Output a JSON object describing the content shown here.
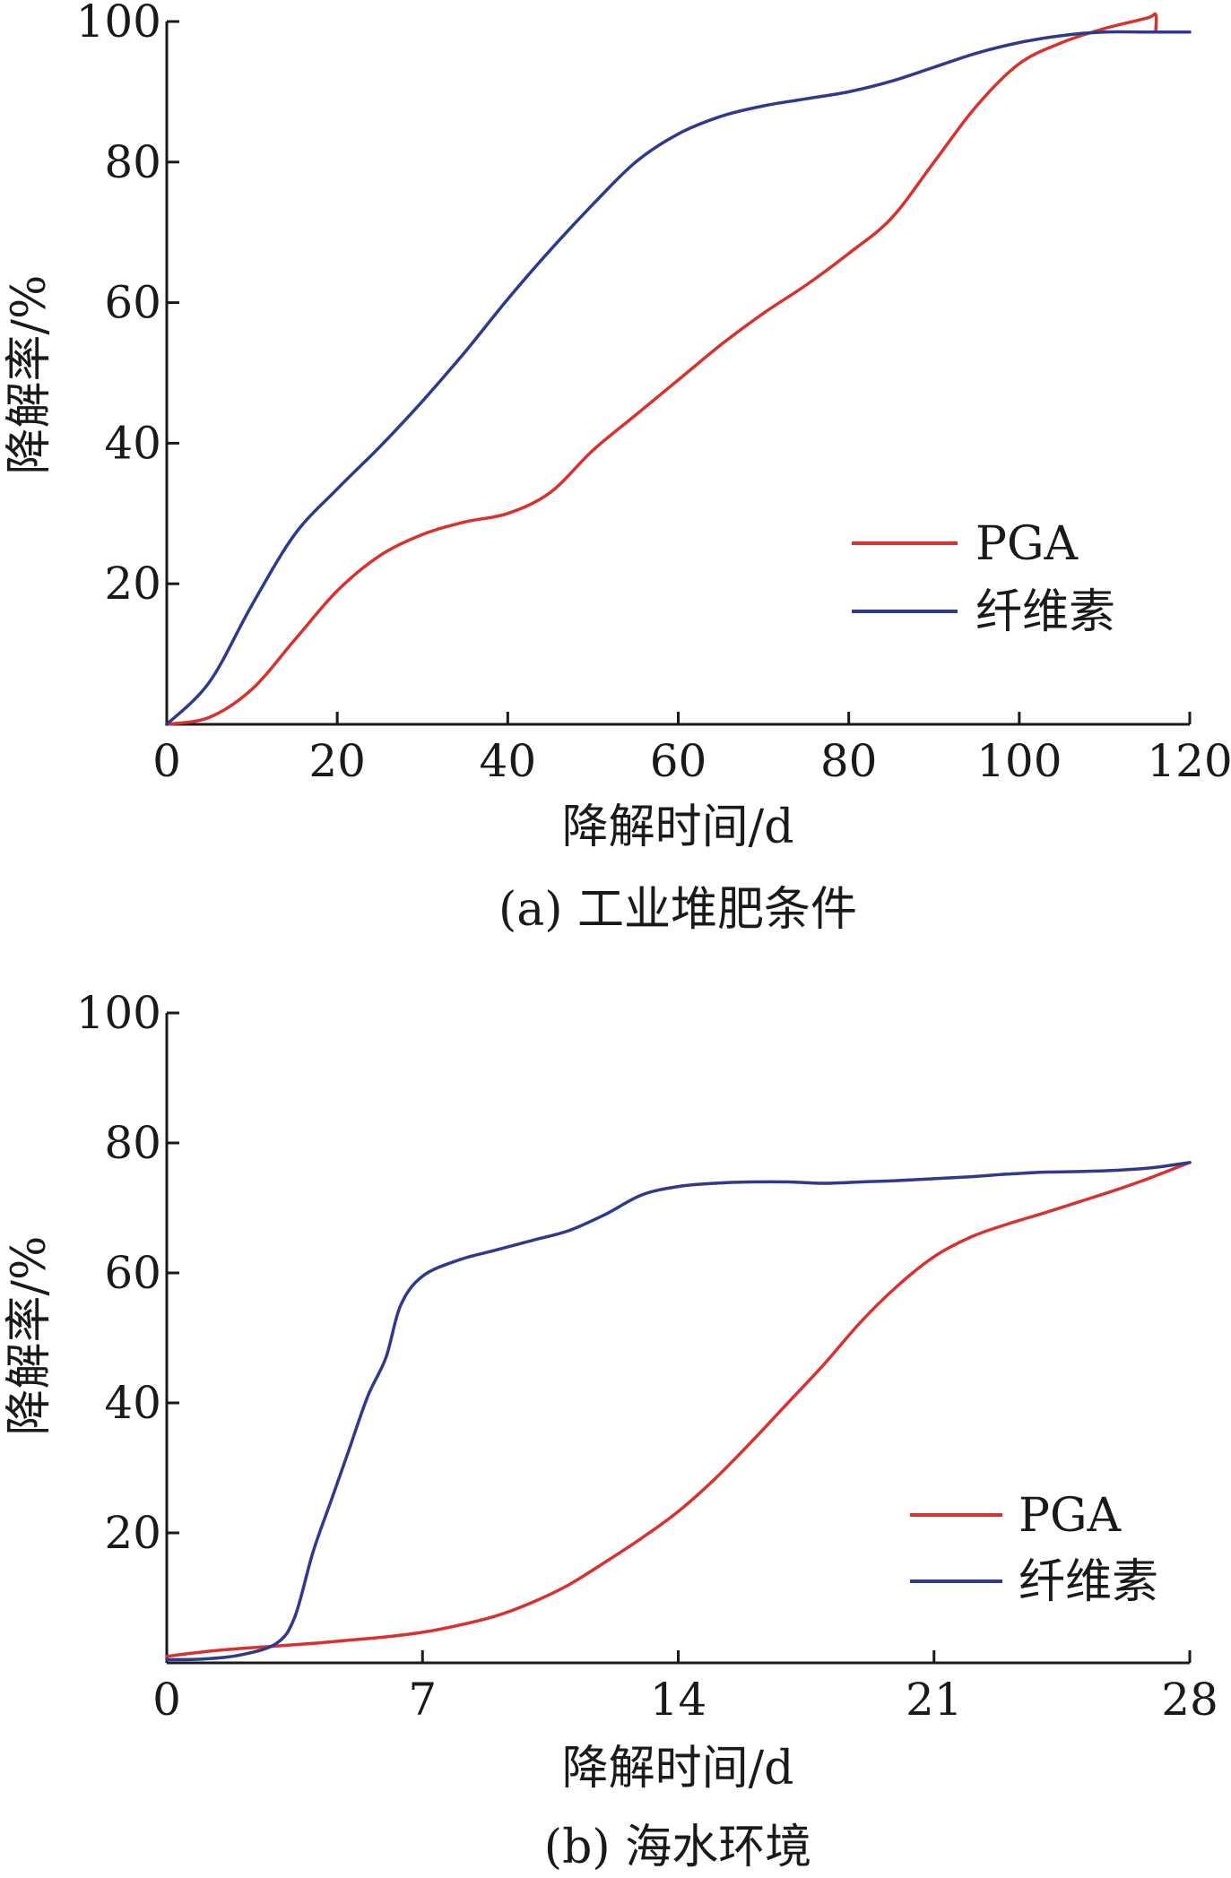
{
  "chart_data": [
    {
      "type": "line",
      "caption": "(a) 工业堆肥条件",
      "xlabel": "降解时间/d",
      "ylabel": "降解率/%",
      "xlim": [
        0,
        120
      ],
      "ylim": [
        0,
        100
      ],
      "xticks": [
        0,
        20,
        40,
        60,
        80,
        100,
        120
      ],
      "yticks": [
        20,
        40,
        60,
        80,
        100
      ],
      "legend_position": "lower-right",
      "series": [
        {
          "name": "PGA",
          "color": "#d7322d",
          "x": [
            0,
            5,
            10,
            15,
            20,
            25,
            30,
            35,
            40,
            45,
            50,
            55,
            60,
            65,
            70,
            75,
            80,
            85,
            90,
            95,
            100,
            105,
            110,
            115,
            116,
            116
          ],
          "y": [
            0,
            1,
            5,
            12,
            19,
            24,
            27,
            28.8,
            30,
            33,
            39,
            44,
            49,
            54,
            58.5,
            62.5,
            67,
            72,
            80,
            88,
            94,
            97,
            99,
            100.5,
            101,
            98.5
          ]
        },
        {
          "name": "纤维素",
          "color": "#2e3a8c",
          "x": [
            0,
            5,
            10,
            15,
            20,
            25,
            30,
            35,
            40,
            45,
            50,
            55,
            60,
            65,
            70,
            75,
            80,
            85,
            90,
            95,
            100,
            105,
            110,
            115,
            120
          ],
          "y": [
            0,
            6,
            17,
            27,
            33.5,
            39.5,
            46,
            53,
            60.5,
            67.5,
            74,
            80,
            84,
            86.5,
            88,
            89,
            90,
            91.5,
            93.5,
            95.5,
            97,
            98,
            98.5,
            98.5,
            98.5
          ]
        }
      ]
    },
    {
      "type": "line",
      "caption": "(b) 海水环境",
      "xlabel": "降解时间/d",
      "ylabel": "降解率/%",
      "xlim": [
        0,
        28
      ],
      "ylim": [
        0,
        100
      ],
      "xticks": [
        0,
        7,
        14,
        21,
        28
      ],
      "yticks": [
        20,
        40,
        60,
        80,
        100
      ],
      "legend_position": "lower-right",
      "series": [
        {
          "name": "PGA",
          "color": "#d7322d",
          "x": [
            0,
            1,
            2,
            3,
            4,
            5,
            6,
            7,
            8,
            9,
            10,
            11,
            12,
            13,
            14,
            15,
            16,
            17,
            18,
            19,
            20,
            21,
            22,
            23,
            24,
            25,
            26,
            27,
            28
          ],
          "y": [
            1,
            1.7,
            2.2,
            2.6,
            3,
            3.5,
            4,
            4.7,
            5.8,
            7.2,
            9.3,
            12,
            15.5,
            19.2,
            23.3,
            28.3,
            34,
            40,
            46,
            52.5,
            58,
            62.5,
            65.5,
            67.5,
            69.2,
            71,
            72.8,
            74.8,
            77
          ]
        },
        {
          "name": "纤维素",
          "color": "#2e3a8c",
          "x": [
            0,
            1,
            2,
            3,
            3.5,
            4,
            4.5,
            5,
            5.5,
            6,
            6.4,
            7,
            8,
            9,
            10,
            11,
            12,
            13,
            14,
            15,
            16,
            17,
            18,
            19,
            20,
            21,
            22,
            23,
            24,
            25,
            26,
            27,
            28
          ],
          "y": [
            0.5,
            0.6,
            1.2,
            3,
            7,
            17,
            25,
            33,
            41,
            47,
            55,
            59.5,
            62,
            63.5,
            65,
            66.5,
            69,
            72,
            73.3,
            73.8,
            74,
            74,
            73.8,
            74,
            74.2,
            74.5,
            74.8,
            75.2,
            75.5,
            75.6,
            75.8,
            76.2,
            77
          ]
        }
      ]
    }
  ]
}
